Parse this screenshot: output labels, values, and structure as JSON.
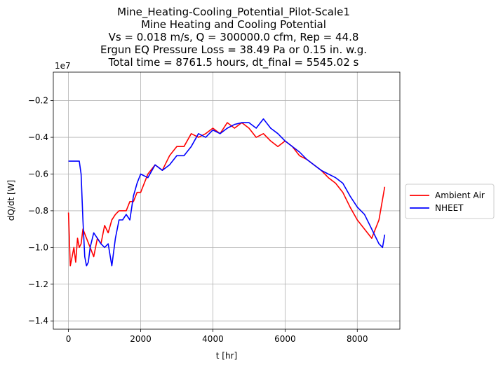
{
  "chart_data": {
    "type": "line",
    "title_lines": [
      "Mine_Heating-Cooling_Potential_Pilot-Scale1",
      "Mine Heating and Cooling Potential",
      "Vs = 0.018 m/s, Q = 300000.0 cfm, Rep = 44.8",
      "Ergun EQ Pressure Loss = 38.49 Pa or 0.15 in. w.g.",
      "Total time = 8761.5 hours, dt_final = 5545.02 s"
    ],
    "xlabel": "t [hr]",
    "ylabel": "dQ/dt [W]",
    "y_offset_label": "1e7",
    "y_scale": 10000000,
    "xlim": [
      -420,
      9180
    ],
    "ylim": [
      -1.445,
      -0.045
    ],
    "xticks": [
      0,
      2000,
      4000,
      6000,
      8000
    ],
    "xtick_labels": [
      "0",
      "2000",
      "4000",
      "6000",
      "8000"
    ],
    "yticks": [
      -1.4,
      -1.2,
      -1.0,
      -0.8,
      -0.6,
      -0.4,
      -0.2
    ],
    "ytick_labels": [
      "−1.4",
      "−1.2",
      "−1.0",
      "−0.8",
      "−0.6",
      "−0.4",
      "−0.2"
    ],
    "grid": true,
    "legend_position": "outside-right",
    "series": [
      {
        "name": "Ambient Air",
        "color": "#ff0000",
        "x": [
          0,
          50,
          100,
          150,
          200,
          250,
          300,
          350,
          400,
          500,
          600,
          700,
          800,
          900,
          1000,
          1100,
          1200,
          1300,
          1400,
          1500,
          1600,
          1700,
          1800,
          1900,
          2000,
          2200,
          2400,
          2600,
          2800,
          3000,
          3200,
          3400,
          3600,
          3800,
          4000,
          4200,
          4400,
          4600,
          4800,
          5000,
          5200,
          5400,
          5600,
          5800,
          6000,
          6200,
          6400,
          6600,
          6800,
          7000,
          7200,
          7400,
          7600,
          7800,
          8000,
          8200,
          8400,
          8600,
          8760
        ],
        "y": [
          -0.81,
          -1.1,
          -1.05,
          -1.0,
          -1.08,
          -0.95,
          -1.0,
          -0.98,
          -0.9,
          -0.95,
          -1.0,
          -1.05,
          -0.95,
          -0.98,
          -0.88,
          -0.92,
          -0.85,
          -0.82,
          -0.8,
          -0.8,
          -0.8,
          -0.75,
          -0.75,
          -0.7,
          -0.7,
          -0.6,
          -0.55,
          -0.58,
          -0.5,
          -0.45,
          -0.45,
          -0.38,
          -0.4,
          -0.38,
          -0.35,
          -0.38,
          -0.32,
          -0.35,
          -0.32,
          -0.35,
          -0.4,
          -0.38,
          -0.42,
          -0.45,
          -0.42,
          -0.45,
          -0.5,
          -0.52,
          -0.55,
          -0.58,
          -0.62,
          -0.65,
          -0.7,
          -0.78,
          -0.85,
          -0.9,
          -0.95,
          -0.85,
          -0.67
        ]
      },
      {
        "name": "NHEET",
        "color": "#0000ff",
        "x": [
          0,
          100,
          200,
          300,
          350,
          400,
          450,
          500,
          550,
          600,
          700,
          800,
          900,
          1000,
          1100,
          1200,
          1300,
          1400,
          1500,
          1600,
          1700,
          1800,
          1900,
          2000,
          2200,
          2400,
          2600,
          2800,
          3000,
          3200,
          3400,
          3600,
          3800,
          4000,
          4200,
          4400,
          4600,
          4800,
          5000,
          5200,
          5400,
          5600,
          5800,
          6000,
          6200,
          6400,
          6600,
          6800,
          7000,
          7200,
          7400,
          7600,
          7800,
          8000,
          8200,
          8400,
          8600,
          8700,
          8760
        ],
        "y": [
          -0.53,
          -0.53,
          -0.53,
          -0.53,
          -0.6,
          -0.85,
          -1.05,
          -1.1,
          -1.08,
          -1.0,
          -0.92,
          -0.95,
          -0.98,
          -1.0,
          -0.98,
          -1.1,
          -0.95,
          -0.85,
          -0.85,
          -0.82,
          -0.85,
          -0.72,
          -0.65,
          -0.6,
          -0.62,
          -0.55,
          -0.58,
          -0.55,
          -0.5,
          -0.5,
          -0.45,
          -0.38,
          -0.4,
          -0.36,
          -0.38,
          -0.35,
          -0.33,
          -0.32,
          -0.32,
          -0.35,
          -0.3,
          -0.35,
          -0.38,
          -0.42,
          -0.45,
          -0.48,
          -0.52,
          -0.55,
          -0.58,
          -0.6,
          -0.62,
          -0.65,
          -0.72,
          -0.78,
          -0.82,
          -0.9,
          -0.98,
          -1.0,
          -0.93
        ]
      }
    ]
  }
}
